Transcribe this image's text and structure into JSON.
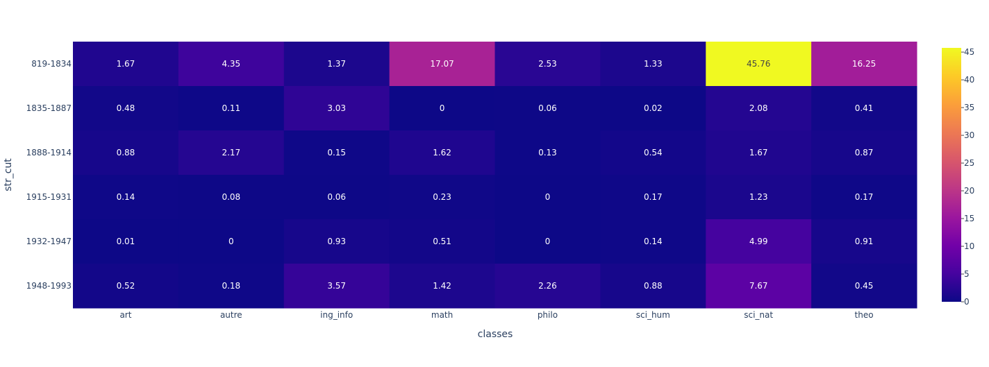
{
  "chart_data": {
    "type": "heatmap",
    "title": "",
    "xlabel": "classes",
    "ylabel": "str_cut",
    "x": [
      "art",
      "autre",
      "ing_info",
      "math",
      "philo",
      "sci_hum",
      "sci_nat",
      "theo"
    ],
    "y": [
      "819-1834",
      "1835-1887",
      "1888-1914",
      "1915-1931",
      "1932-1947",
      "1948-1993"
    ],
    "z": [
      [
        1.67,
        4.35,
        1.37,
        17.07,
        2.53,
        1.33,
        45.76,
        16.25
      ],
      [
        0.48,
        0.11,
        3.03,
        0,
        0.06,
        0.02,
        2.08,
        0.41
      ],
      [
        0.88,
        2.17,
        0.15,
        1.62,
        0.13,
        0.54,
        1.67,
        0.87
      ],
      [
        0.14,
        0.08,
        0.06,
        0.23,
        0,
        0.17,
        1.23,
        0.17
      ],
      [
        0.01,
        0,
        0.93,
        0.51,
        0,
        0.14,
        4.99,
        0.91
      ],
      [
        0.52,
        0.18,
        3.57,
        1.42,
        2.26,
        0.88,
        7.67,
        0.45
      ]
    ],
    "text": [
      [
        "1.67",
        "4.35",
        "1.37",
        "17.07",
        "2.53",
        "1.33",
        "45.76",
        "16.25"
      ],
      [
        "0.48",
        "0.11",
        "3.03",
        "0",
        "0.06",
        "0.02",
        "2.08",
        "0.41"
      ],
      [
        "0.88",
        "2.17",
        "0.15",
        "1.62",
        "0.13",
        "0.54",
        "1.67",
        "0.87"
      ],
      [
        "0.14",
        "0.08",
        "0.06",
        "0.23",
        "0",
        "0.17",
        "1.23",
        "0.17"
      ],
      [
        "0.01",
        "0",
        "0.93",
        "0.51",
        "0",
        "0.14",
        "4.99",
        "0.91"
      ],
      [
        "0.52",
        "0.18",
        "3.57",
        "1.42",
        "2.26",
        "0.88",
        "7.67",
        "0.45"
      ]
    ],
    "zmin": 0,
    "zmax": 45.76,
    "colorscale": "plasma",
    "colorbar": {
      "ticks": [
        0,
        5,
        10,
        15,
        20,
        25,
        30,
        35,
        40,
        45
      ],
      "tick_labels": [
        "0",
        "5",
        "10",
        "15",
        "20",
        "25",
        "30",
        "35",
        "40",
        "45"
      ]
    },
    "grid": false
  }
}
